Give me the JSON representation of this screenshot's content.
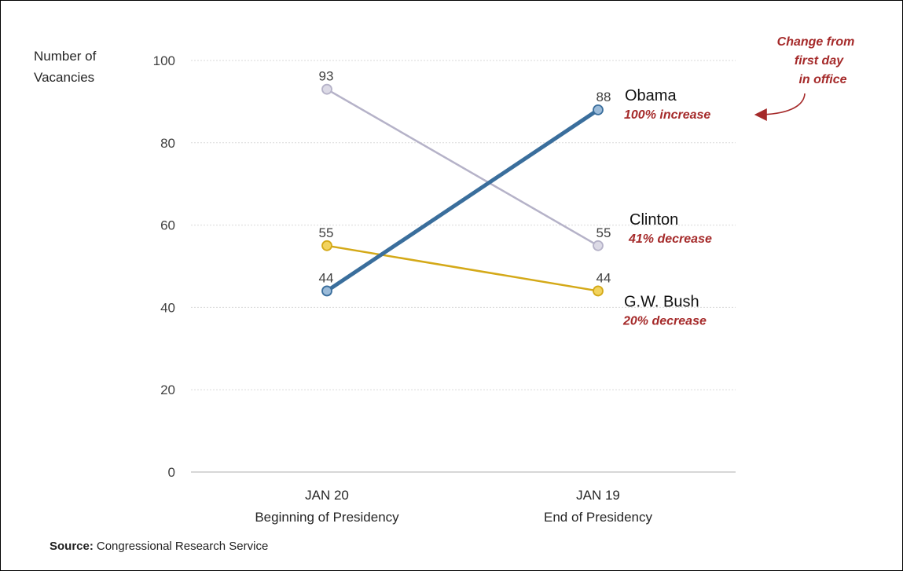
{
  "chart_data": {
    "type": "line",
    "ylabel_lines": [
      "Number of",
      "Vacancies"
    ],
    "ylim": [
      0,
      100
    ],
    "yticks": [
      0,
      20,
      40,
      60,
      80,
      100
    ],
    "grid": true,
    "categories": [
      {
        "line1": "JAN 20",
        "line2": "Beginning of Presidency"
      },
      {
        "line1": "JAN 19",
        "line2": "End of Presidency"
      }
    ],
    "series": [
      {
        "name": "Obama",
        "note": "100% increase",
        "values": [
          44,
          88
        ],
        "color": "#3a6e9c",
        "marker_fill": "#9bbbd9"
      },
      {
        "name": "Clinton",
        "note": "41% decrease",
        "values": [
          93,
          55
        ],
        "color": "#b5b2c8",
        "marker_fill": "#dcdae6"
      },
      {
        "name": "G.W. Bush",
        "note": "20% decrease",
        "values": [
          55,
          44
        ],
        "color": "#d4a918",
        "marker_fill": "#f2d35e"
      }
    ],
    "annotation_lines": [
      "Change from",
      "first day",
      "in office"
    ],
    "source_label": "Source:",
    "source_text": "Congressional Research Service"
  }
}
